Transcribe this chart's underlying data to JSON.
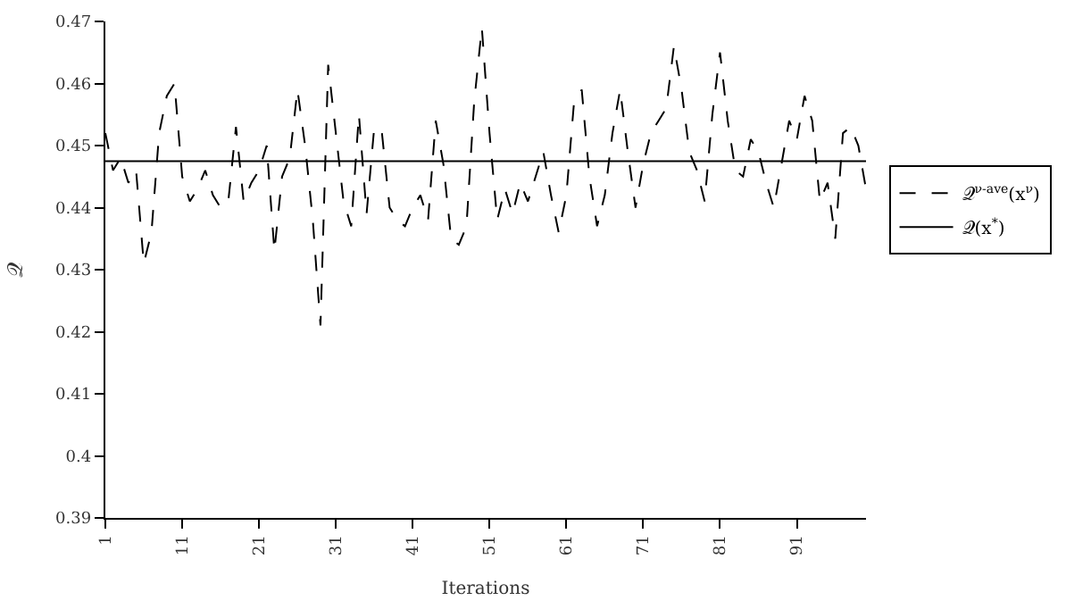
{
  "chart_data": {
    "type": "line",
    "xlabel": "Iterations",
    "ylabel": "𝒬",
    "xlim": [
      1,
      100
    ],
    "xticks": [
      1,
      11,
      21,
      31,
      41,
      51,
      61,
      71,
      81,
      91
    ],
    "ylim": [
      0.39,
      0.47
    ],
    "yticks": [
      0.39,
      0.4,
      0.41,
      0.42,
      0.43,
      0.44,
      0.45,
      0.46,
      0.47
    ],
    "legend": "right",
    "marker": "none",
    "series": [
      {
        "name": "𝒬$^{ν-ave}$(x$^{ν}$)",
        "color": "#000000",
        "line_style": "dashed",
        "x": [
          1,
          2,
          3,
          4,
          5,
          6,
          7,
          8,
          9,
          10,
          11,
          12,
          13,
          14,
          15,
          16,
          17,
          18,
          19,
          20,
          21,
          22,
          23,
          24,
          25,
          26,
          27,
          28,
          29,
          30,
          31,
          32,
          33,
          34,
          35,
          36,
          37,
          38,
          39,
          40,
          41,
          42,
          43,
          44,
          45,
          46,
          47,
          48,
          49,
          50,
          51,
          52,
          53,
          54,
          55,
          56,
          57,
          58,
          59,
          60,
          61,
          62,
          63,
          64,
          65,
          66,
          67,
          68,
          69,
          70,
          71,
          72,
          73,
          74,
          75,
          76,
          77,
          78,
          79,
          80,
          81,
          82,
          83,
          84,
          85,
          86,
          87,
          88,
          89,
          90,
          91,
          92,
          93,
          94,
          95,
          96,
          97,
          98,
          99,
          100
        ],
        "values": [
          0.452,
          0.446,
          0.448,
          0.444,
          0.446,
          0.431,
          0.436,
          0.452,
          0.458,
          0.46,
          0.445,
          0.441,
          0.443,
          0.446,
          0.442,
          0.44,
          0.441,
          0.453,
          0.441,
          0.444,
          0.446,
          0.45,
          0.433,
          0.445,
          0.448,
          0.459,
          0.45,
          0.438,
          0.421,
          0.463,
          0.452,
          0.441,
          0.437,
          0.455,
          0.439,
          0.453,
          0.452,
          0.44,
          0.438,
          0.437,
          0.44,
          0.442,
          0.438,
          0.454,
          0.447,
          0.435,
          0.434,
          0.437,
          0.457,
          0.469,
          0.452,
          0.438,
          0.443,
          0.439,
          0.444,
          0.441,
          0.445,
          0.449,
          0.442,
          0.436,
          0.442,
          0.457,
          0.459,
          0.445,
          0.437,
          0.442,
          0.452,
          0.459,
          0.449,
          0.44,
          0.447,
          0.452,
          0.454,
          0.456,
          0.466,
          0.459,
          0.449,
          0.446,
          0.441,
          0.455,
          0.465,
          0.454,
          0.446,
          0.445,
          0.451,
          0.449,
          0.444,
          0.44,
          0.447,
          0.454,
          0.451,
          0.458,
          0.454,
          0.441,
          0.444,
          0.435,
          0.452,
          0.453,
          0.45,
          0.443
        ]
      },
      {
        "name": "𝒬(x$^{*}$)",
        "color": "#000000",
        "line_style": "solid",
        "x": [
          1,
          100
        ],
        "values": [
          0.4475,
          0.4475
        ]
      }
    ]
  }
}
